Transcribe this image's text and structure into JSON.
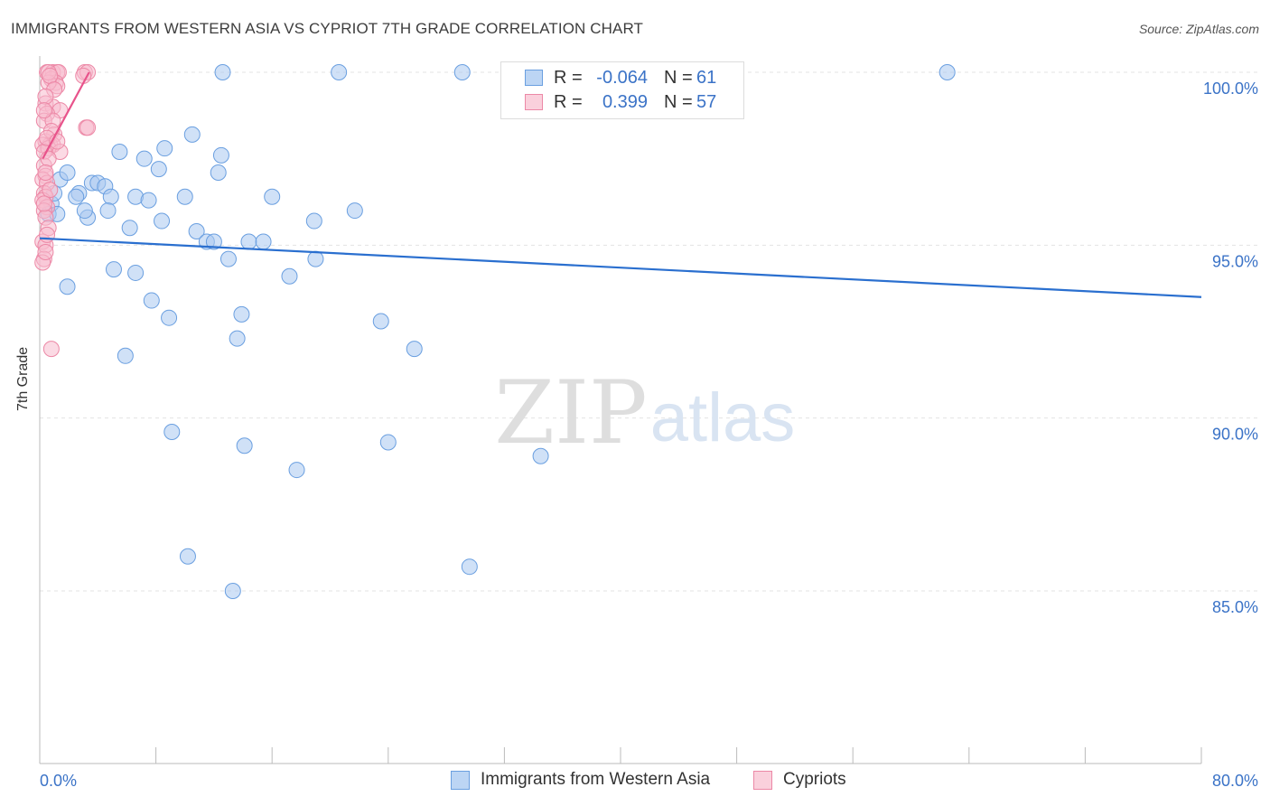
{
  "title": "IMMIGRANTS FROM WESTERN ASIA VS CYPRIOT 7TH GRADE CORRELATION CHART",
  "source": "Source: ZipAtlas.com",
  "watermark": {
    "zip": "ZIP",
    "atlas": "atlas"
  },
  "legend": {
    "r_label": "R =",
    "n_label": "N =",
    "rows": [
      {
        "r": "-0.064",
        "n": "61",
        "color": "#a9c8f0",
        "border": "#6a9fe0"
      },
      {
        "r": "0.399",
        "n": "57",
        "color": "#f8bccd",
        "border": "#ec88a6"
      }
    ]
  },
  "chart_data": {
    "type": "scatter",
    "title": "IMMIGRANTS FROM WESTERN ASIA VS CYPRIOT 7TH GRADE CORRELATION CHART",
    "xlabel": "",
    "ylabel": "7th Grade",
    "xlim": [
      0,
      80
    ],
    "ylim": [
      80.5,
      100.5
    ],
    "x_tick_labels": {
      "left": "0.0%",
      "right": "80.0%"
    },
    "y_ticks": [
      {
        "value": 100,
        "label": "100.0%"
      },
      {
        "value": 95,
        "label": "95.0%"
      },
      {
        "value": 90,
        "label": "90.0%"
      },
      {
        "value": 85,
        "label": "85.0%"
      }
    ],
    "grid": true,
    "series": [
      {
        "name": "Immigrants from Western Asia",
        "color": "#a9c8f0",
        "edge": "#6a9fe0",
        "line_color": "#2a6fcf",
        "trend": {
          "x": [
            0,
            80
          ],
          "y": [
            95.2,
            93.5
          ]
        },
        "points": [
          [
            0.8,
            96.2
          ],
          [
            0.6,
            95.9
          ],
          [
            1.2,
            95.9
          ],
          [
            1.4,
            96.9
          ],
          [
            1.0,
            96.5
          ],
          [
            1.9,
            97.1
          ],
          [
            2.7,
            96.5
          ],
          [
            2.5,
            96.4
          ],
          [
            3.3,
            95.8
          ],
          [
            3.1,
            96.0
          ],
          [
            3.6,
            96.8
          ],
          [
            4.0,
            96.8
          ],
          [
            4.5,
            96.7
          ],
          [
            4.9,
            96.4
          ],
          [
            4.7,
            96.0
          ],
          [
            5.5,
            97.7
          ],
          [
            6.2,
            95.5
          ],
          [
            6.6,
            96.4
          ],
          [
            7.2,
            97.5
          ],
          [
            7.5,
            96.3
          ],
          [
            8.2,
            97.2
          ],
          [
            8.4,
            95.7
          ],
          [
            8.6,
            97.8
          ],
          [
            10.0,
            96.4
          ],
          [
            10.5,
            98.2
          ],
          [
            10.8,
            95.4
          ],
          [
            11.5,
            95.1
          ],
          [
            12.0,
            95.1
          ],
          [
            12.3,
            97.1
          ],
          [
            12.5,
            97.6
          ],
          [
            13.0,
            94.6
          ],
          [
            14.4,
            95.1
          ],
          [
            15.4,
            95.1
          ],
          [
            16.0,
            96.4
          ],
          [
            17.2,
            94.1
          ],
          [
            18.9,
            95.7
          ],
          [
            19.0,
            94.6
          ],
          [
            21.7,
            96.0
          ],
          [
            5.1,
            94.3
          ],
          [
            6.6,
            94.2
          ],
          [
            1.9,
            93.8
          ],
          [
            7.7,
            93.4
          ],
          [
            8.9,
            92.9
          ],
          [
            13.9,
            93.0
          ],
          [
            13.6,
            92.3
          ],
          [
            23.5,
            92.8
          ],
          [
            25.8,
            92.0
          ],
          [
            5.9,
            91.8
          ],
          [
            9.1,
            89.6
          ],
          [
            14.1,
            89.2
          ],
          [
            24.0,
            89.3
          ],
          [
            17.7,
            88.5
          ],
          [
            34.5,
            88.9
          ],
          [
            10.2,
            86.0
          ],
          [
            29.6,
            85.7
          ],
          [
            13.3,
            85.0
          ],
          [
            12.6,
            100.0
          ],
          [
            20.6,
            100.0
          ],
          [
            29.1,
            100.0
          ],
          [
            43.8,
            100.0
          ],
          [
            62.5,
            100.0
          ]
        ]
      },
      {
        "name": "Cypriots",
        "color": "#f8bccd",
        "edge": "#ec88a6",
        "line_color": "#e8538b",
        "trend": {
          "x": [
            0.2,
            3.4
          ],
          "y": [
            97.5,
            100.0
          ]
        },
        "points": [
          [
            0.5,
            100.0
          ],
          [
            0.9,
            100.0
          ],
          [
            1.2,
            100.0
          ],
          [
            1.3,
            100.0
          ],
          [
            3.1,
            100.0
          ],
          [
            3.3,
            100.0
          ],
          [
            0.8,
            99.8
          ],
          [
            1.1,
            99.7
          ],
          [
            1.2,
            99.6
          ],
          [
            0.6,
            99.7
          ],
          [
            3.0,
            99.9
          ],
          [
            0.4,
            99.1
          ],
          [
            0.9,
            99.0
          ],
          [
            1.4,
            98.9
          ],
          [
            0.5,
            98.8
          ],
          [
            0.3,
            98.6
          ],
          [
            0.9,
            98.6
          ],
          [
            3.2,
            98.4
          ],
          [
            3.3,
            98.4
          ],
          [
            1.0,
            98.2
          ],
          [
            0.4,
            98.0
          ],
          [
            0.7,
            97.9
          ],
          [
            0.9,
            97.9
          ],
          [
            0.2,
            97.9
          ],
          [
            0.6,
            97.8
          ],
          [
            0.3,
            97.7
          ],
          [
            1.4,
            97.7
          ],
          [
            0.3,
            97.3
          ],
          [
            0.4,
            97.0
          ],
          [
            0.2,
            96.9
          ],
          [
            0.5,
            96.8
          ],
          [
            0.3,
            96.5
          ],
          [
            0.4,
            96.4
          ],
          [
            0.2,
            96.3
          ],
          [
            0.5,
            96.1
          ],
          [
            0.3,
            96.0
          ],
          [
            0.4,
            95.8
          ],
          [
            0.6,
            95.5
          ],
          [
            0.2,
            95.1
          ],
          [
            0.4,
            95.0
          ],
          [
            0.3,
            94.6
          ],
          [
            0.2,
            94.5
          ],
          [
            0.8,
            92.0
          ],
          [
            0.6,
            100.0
          ],
          [
            0.7,
            99.9
          ],
          [
            1.0,
            99.5
          ],
          [
            0.4,
            99.3
          ],
          [
            0.3,
            98.9
          ],
          [
            0.8,
            98.3
          ],
          [
            0.5,
            98.1
          ],
          [
            1.2,
            98.0
          ],
          [
            0.6,
            97.5
          ],
          [
            0.4,
            97.1
          ],
          [
            0.7,
            96.6
          ],
          [
            0.3,
            96.2
          ],
          [
            0.5,
            95.3
          ],
          [
            0.4,
            94.8
          ]
        ]
      }
    ]
  }
}
